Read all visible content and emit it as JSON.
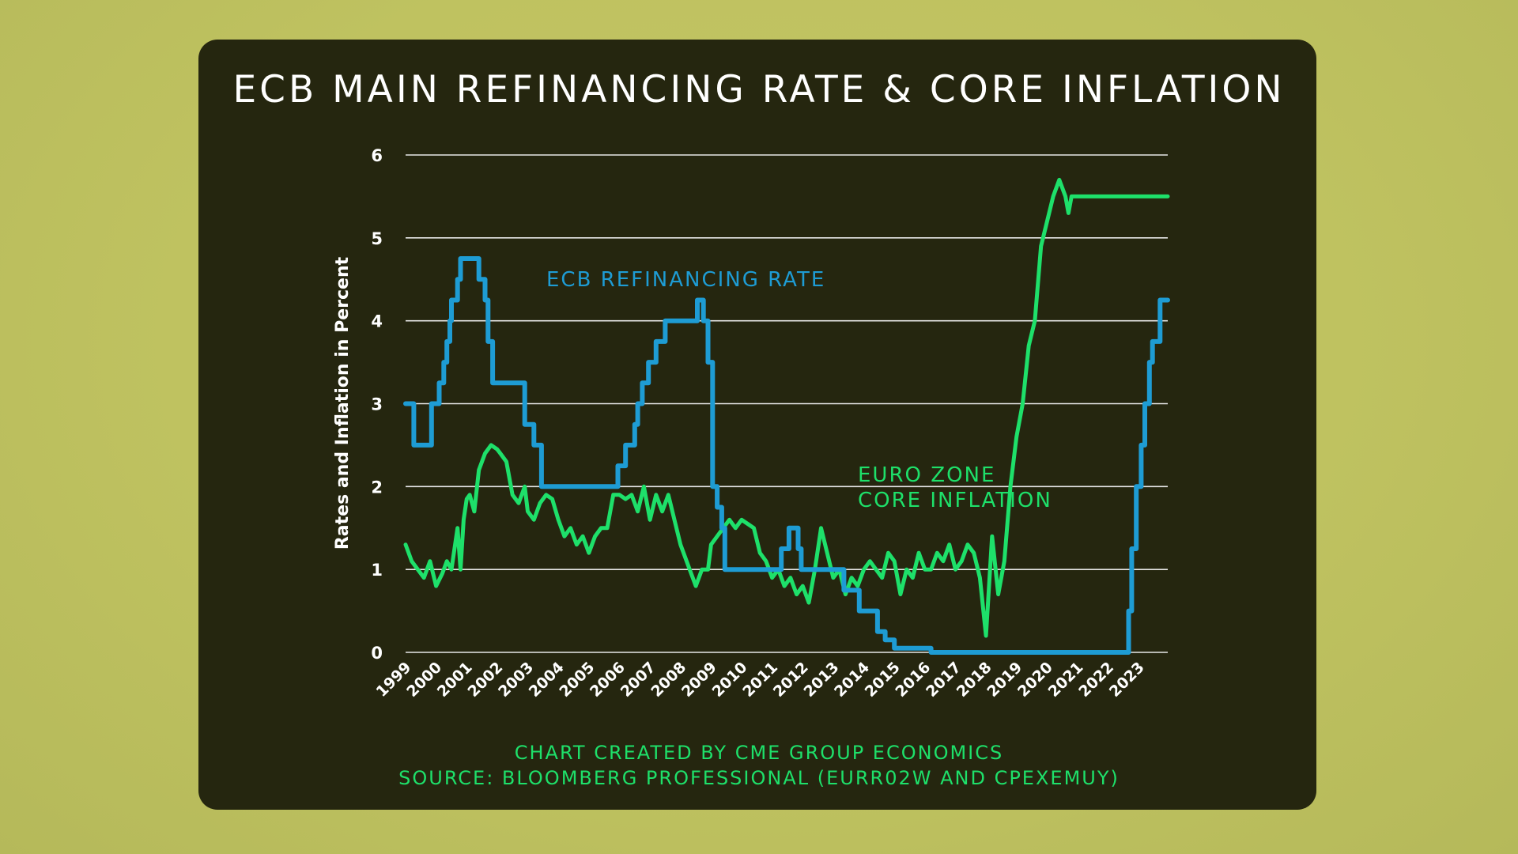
{
  "colors": {
    "background": "#c2c362",
    "panel": "#25260f",
    "ecb": "#1e9cd4",
    "inflation": "#1ee06a",
    "text": "#ffffff"
  },
  "footer": {
    "line1": "CHART CREATED BY CME GROUP ECONOMICS",
    "line2": "SOURCE: BLOOMBERG PROFESSIONAL (EURR02W AND CPEXEMUY)"
  },
  "chart_data": {
    "type": "line",
    "title": "ECB MAIN REFINANCING RATE & CORE INFLATION",
    "xlabel": "",
    "ylabel": "Rates and Inflation in Percent",
    "xlim": [
      1999,
      2023.95
    ],
    "ylim": [
      0,
      6
    ],
    "yticks": [
      0,
      1,
      2,
      3,
      4,
      5,
      6
    ],
    "xticks": [
      "1999",
      "2000",
      "2001",
      "2002",
      "2003",
      "2004",
      "2005",
      "2006",
      "2007",
      "2008",
      "2009",
      "2010",
      "2011",
      "2012",
      "2013",
      "2014",
      "2015",
      "2016",
      "2017",
      "2018",
      "2019",
      "2020",
      "2021",
      "2022",
      "2023"
    ],
    "grid": true,
    "series": [
      {
        "name": "ECB REFINANCING RATE",
        "label_lines": [
          "ECB REFINANCING RATE"
        ],
        "color": "#1e9cd4",
        "step": true,
        "x": [
          1999.0,
          1999.27,
          1999.85,
          2000.1,
          2000.25,
          2000.35,
          2000.45,
          2000.5,
          2000.7,
          2000.8,
          2001.4,
          2001.6,
          2001.7,
          2001.85,
          2002.0,
          2002.9,
          2003.2,
          2003.45,
          2003.5,
          2004.0,
          2005.0,
          2005.95,
          2006.2,
          2006.5,
          2006.6,
          2006.75,
          2006.95,
          2007.2,
          2007.5,
          2008.0,
          2008.55,
          2008.75,
          2008.9,
          2009.05,
          2009.2,
          2009.35,
          2009.45,
          2010.0,
          2011.0,
          2011.3,
          2011.55,
          2011.85,
          2011.95,
          2012.5,
          2013.35,
          2013.85,
          2014.45,
          2014.7,
          2015.0,
          2016.2,
          2017.0,
          2018.0,
          2019.0,
          2020.0,
          2021.0,
          2022.0,
          2022.5,
          2022.67,
          2022.77,
          2022.92,
          2023.08,
          2023.2,
          2023.35,
          2023.45,
          2023.7,
          2023.95
        ],
        "y": [
          3.0,
          2.5,
          3.0,
          3.25,
          3.5,
          3.75,
          4.0,
          4.25,
          4.5,
          4.75,
          4.5,
          4.25,
          3.75,
          3.25,
          3.25,
          2.75,
          2.5,
          2.0,
          2.0,
          2.0,
          2.0,
          2.25,
          2.5,
          2.75,
          3.0,
          3.25,
          3.5,
          3.75,
          4.0,
          4.0,
          4.25,
          4.0,
          3.5,
          2.0,
          1.75,
          1.5,
          1.0,
          1.0,
          1.0,
          1.25,
          1.5,
          1.25,
          1.0,
          1.0,
          0.75,
          0.5,
          0.25,
          0.15,
          0.05,
          0.0,
          0.0,
          0.0,
          0.0,
          0.0,
          0.0,
          0.0,
          0.0,
          0.5,
          1.25,
          2.0,
          2.5,
          3.0,
          3.5,
          3.75,
          4.25,
          4.25
        ]
      },
      {
        "name": "EURO ZONE CORE INFLATION",
        "label_lines": [
          "EURO ZONE",
          "CORE INFLATION"
        ],
        "color": "#1ee06a",
        "step": false,
        "x": [
          1999.0,
          1999.2,
          1999.4,
          1999.6,
          1999.8,
          2000.0,
          2000.2,
          2000.35,
          2000.5,
          2000.7,
          2000.8,
          2000.9,
          2001.0,
          2001.1,
          2001.25,
          2001.4,
          2001.6,
          2001.8,
          2002.0,
          2002.1,
          2002.3,
          2002.5,
          2002.7,
          2002.9,
          2003.0,
          2003.2,
          2003.4,
          2003.6,
          2003.8,
          2004.0,
          2004.2,
          2004.4,
          2004.6,
          2004.8,
          2005.0,
          2005.2,
          2005.4,
          2005.6,
          2005.8,
          2006.0,
          2006.2,
          2006.4,
          2006.6,
          2006.8,
          2007.0,
          2007.2,
          2007.4,
          2007.6,
          2007.8,
          2008.0,
          2008.1,
          2008.3,
          2008.5,
          2008.7,
          2008.9,
          2009.0,
          2009.2,
          2009.4,
          2009.6,
          2009.8,
          2010.0,
          2010.2,
          2010.4,
          2010.6,
          2010.8,
          2011.0,
          2011.2,
          2011.4,
          2011.6,
          2011.8,
          2012.0,
          2012.2,
          2012.4,
          2012.6,
          2012.8,
          2013.0,
          2013.2,
          2013.4,
          2013.6,
          2013.8,
          2014.0,
          2014.2,
          2014.4,
          2014.6,
          2014.8,
          2015.0,
          2015.2,
          2015.4,
          2015.6,
          2015.8,
          2016.0,
          2016.2,
          2016.4,
          2016.6,
          2016.8,
          2017.0,
          2017.2,
          2017.4,
          2017.6,
          2017.8,
          2018.0,
          2018.2,
          2018.4,
          2018.6,
          2018.8,
          2019.0,
          2019.2,
          2019.4,
          2019.6,
          2019.8,
          2020.0,
          2020.2,
          2020.4,
          2020.6,
          2020.7,
          2020.8,
          2021.0,
          2021.1,
          2021.25,
          2021.4,
          2021.55,
          2021.7,
          2021.85,
          2022.0,
          2022.1,
          2022.25,
          2022.4,
          2022.55,
          2022.7,
          2022.85,
          2023.0,
          2023.15,
          2023.3,
          2023.45,
          2023.6,
          2023.75,
          2023.95
        ],
        "y": [
          1.3,
          1.1,
          1.0,
          0.9,
          1.1,
          0.8,
          0.95,
          1.1,
          1.0,
          1.5,
          1.0,
          1.6,
          1.85,
          1.9,
          1.7,
          2.2,
          2.4,
          2.5,
          2.45,
          2.4,
          2.3,
          1.9,
          1.8,
          2.0,
          1.7,
          1.6,
          1.8,
          1.9,
          1.85,
          1.6,
          1.4,
          1.5,
          1.3,
          1.4,
          1.2,
          1.4,
          1.5,
          1.5,
          1.9,
          1.9,
          1.85,
          1.9,
          1.7,
          2.0,
          1.6,
          1.9,
          1.7,
          1.9,
          1.6,
          1.3,
          1.2,
          1.0,
          0.8,
          1.0,
          1.0,
          1.3,
          1.4,
          1.5,
          1.6,
          1.5,
          1.6,
          1.55,
          1.5,
          1.2,
          1.1,
          0.9,
          1.0,
          0.8,
          0.9,
          0.7,
          0.8,
          0.6,
          1.0,
          1.5,
          1.2,
          0.9,
          1.0,
          0.7,
          0.9,
          0.8,
          1.0,
          1.1,
          1.0,
          0.9,
          1.2,
          1.1,
          0.7,
          1.0,
          0.9,
          1.2,
          1.0,
          1.0,
          1.2,
          1.1,
          1.3,
          1.0,
          1.1,
          1.3,
          1.2,
          0.9,
          0.2,
          1.4,
          0.7,
          1.1,
          2.0,
          2.6,
          3.0,
          3.7,
          4.0,
          4.9,
          5.2,
          5.5,
          5.7,
          5.5,
          5.3,
          5.5,
          5.5,
          5.5,
          5.5,
          5.5,
          5.5,
          5.5,
          5.5,
          5.5,
          5.5,
          5.5,
          5.5,
          5.5,
          5.5,
          5.5,
          5.5,
          5.5,
          5.5,
          5.5,
          5.5,
          5.5,
          5.5
        ]
      }
    ]
  }
}
